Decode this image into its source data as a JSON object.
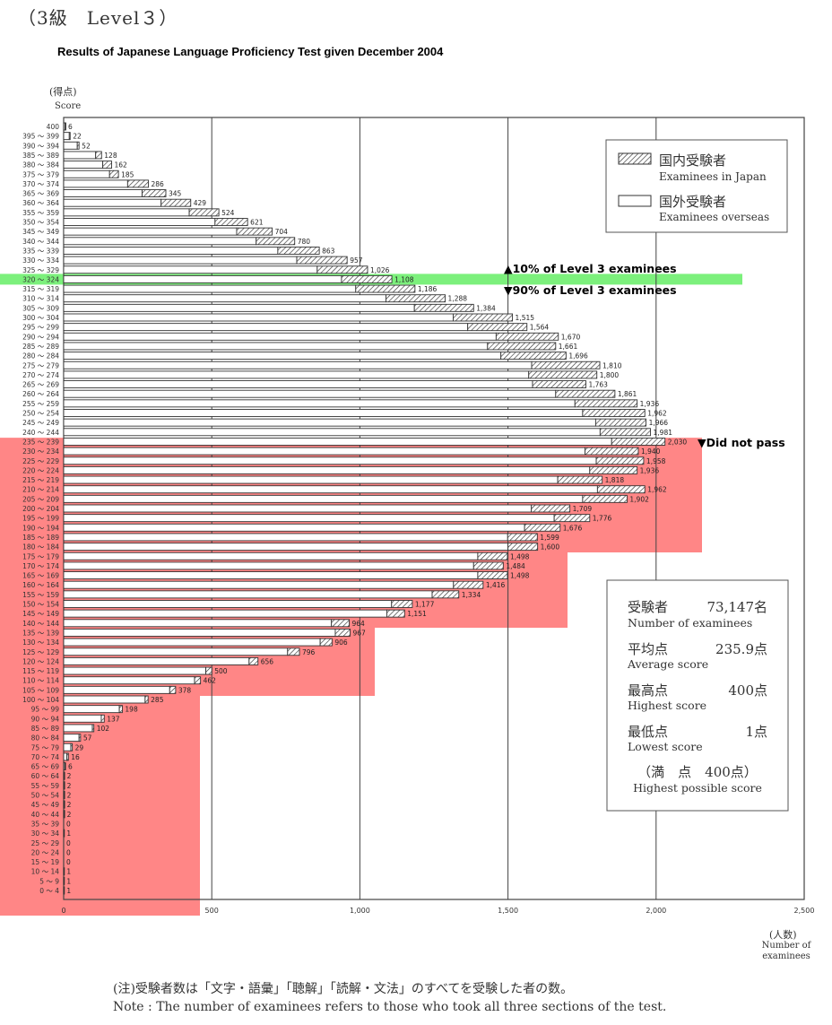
{
  "header": {
    "level": "（3級　Level３）",
    "title": "Results of Japanese Language Proficiency Test given December 2004"
  },
  "colors": {
    "pass_band": "#7cf07c",
    "fail_region": "#ff7f7f",
    "bar_stroke": "#333333",
    "grid": "#444444"
  },
  "legend": {
    "japan_jp": "国内受験者",
    "japan_en": "Examinees in Japan",
    "overseas_jp": "国外受験者",
    "overseas_en": "Examinees overseas",
    "japan_pattern": "hatched",
    "overseas_pattern": "white"
  },
  "annotations": {
    "top10": "▲10% of Level 3 examinees",
    "bottom90": "▼90% of Level 3 examinees",
    "did_not_pass": "▼Did not pass"
  },
  "stats": {
    "examinees_jp": "受験者",
    "examinees_value": "73,147名",
    "examinees_en": "Number of examinees",
    "average_jp": "平均点",
    "average_value": "235.9点",
    "average_en": "Average score",
    "highest_jp": "最高点",
    "highest_value": "400点",
    "highest_en": "Highest score",
    "lowest_jp": "最低点",
    "lowest_value": "1点",
    "lowest_en": "Lowest score",
    "possible_jp": "（満　点　400点）",
    "possible_en": "Highest possible score"
  },
  "notes": {
    "jp": "(注)受験者数は「文字・語彙」「聴解」「読解・文法」のすべてを受験した者の数。",
    "en": "Note : The number of examinees refers to those who took all three sections of the test."
  },
  "chart_data": {
    "type": "bar",
    "orientation": "horizontal",
    "ylabel_jp": "(得点)",
    "ylabel": "Score",
    "xlabel_jp": "(人数)",
    "xlabel": "Number of examinees",
    "xlim": [
      0,
      2500
    ],
    "xticks": [
      "0",
      "500",
      "1,000",
      "1,500",
      "2,000",
      "2,500"
    ],
    "xtick_values": [
      0,
      500,
      1000,
      1500,
      2000,
      2500
    ],
    "grid": true,
    "legend_position": "top-right",
    "categories": [
      "400",
      "395 ～ 399",
      "390 ～ 394",
      "385 ～ 389",
      "380 ～ 384",
      "375 ～ 379",
      "370 ～ 374",
      "365 ～ 369",
      "360 ～ 364",
      "355 ～ 359",
      "350 ～ 354",
      "345 ～ 349",
      "340 ～ 344",
      "335 ～ 339",
      "330 ～ 334",
      "325 ～ 329",
      "320 ～ 324",
      "315 ～ 319",
      "310 ～ 314",
      "305 ～ 309",
      "300 ～ 304",
      "295 ～ 299",
      "290 ～ 294",
      "285 ～ 289",
      "280 ～ 284",
      "275 ～ 279",
      "270 ～ 274",
      "265 ～ 269",
      "260 ～ 264",
      "255 ～ 259",
      "250 ～ 254",
      "245 ～ 249",
      "240 ～ 244",
      "235 ～ 239",
      "230 ～ 234",
      "225 ～ 229",
      "220 ～ 224",
      "215 ～ 219",
      "210 ～ 214",
      "205 ～ 209",
      "200 ～ 204",
      "195 ～ 199",
      "190 ～ 194",
      "185 ～ 189",
      "180 ～ 184",
      "175 ～ 179",
      "170 ～ 174",
      "165 ～ 169",
      "160 ～ 164",
      "155 ～ 159",
      "150 ～ 154",
      "145 ～ 149",
      "140 ～ 144",
      "135 ～ 139",
      "130 ～ 134",
      "125 ～ 129",
      "120 ～ 124",
      "115 ～ 119",
      "110 ～ 114",
      "105 ～ 109",
      "100 ～ 104",
      "95 ～ 99",
      "90 ～ 94",
      "85 ～ 89",
      "80 ～ 84",
      "75 ～ 79",
      "70 ～ 74",
      "65 ～ 69",
      "60 ～ 64",
      "55 ～ 59",
      "50 ～ 54",
      "45 ～ 49",
      "40 ～ 44",
      "35 ～ 39",
      "30 ～ 34",
      "25 ～ 29",
      "20 ～ 24",
      "15 ～ 19",
      "10 ～ 14",
      "5 ～ 9",
      "0 ～ 4"
    ],
    "totals": [
      6,
      22,
      52,
      128,
      162,
      185,
      286,
      345,
      429,
      524,
      621,
      704,
      780,
      863,
      957,
      1026,
      1108,
      1186,
      1288,
      1384,
      1515,
      1564,
      1670,
      1661,
      1696,
      1810,
      1800,
      1763,
      1861,
      1936,
      1962,
      1966,
      1981,
      2030,
      1940,
      1958,
      1936,
      1818,
      1962,
      1902,
      1709,
      1776,
      1676,
      1599,
      1600,
      1498,
      1484,
      1498,
      1416,
      1334,
      1177,
      1151,
      964,
      967,
      906,
      796,
      656,
      500,
      462,
      378,
      285,
      198,
      137,
      102,
      57,
      29,
      16,
      6,
      2,
      2,
      2,
      2,
      2,
      0,
      1,
      0,
      0,
      0,
      1,
      1,
      1
    ],
    "series": [
      {
        "name": "Examinees in Japan",
        "values": [
          1,
          3,
          6,
          20,
          30,
          30,
          70,
          80,
          100,
          100,
          110,
          120,
          130,
          140,
          170,
          170,
          170,
          200,
          200,
          200,
          200,
          200,
          210,
          230,
          220,
          230,
          230,
          180,
          200,
          210,
          210,
          170,
          170,
          180,
          180,
          160,
          160,
          150,
          160,
          150,
          130,
          120,
          120,
          100,
          100,
          100,
          100,
          100,
          100,
          90,
          70,
          60,
          60,
          50,
          40,
          40,
          30,
          20,
          20,
          20,
          10,
          10,
          10,
          5,
          5,
          5,
          5,
          2,
          1,
          1,
          1,
          1,
          1,
          0,
          0,
          0,
          0,
          0,
          0,
          0,
          0
        ]
      },
      {
        "name": "Examinees overseas",
        "values": [
          5,
          19,
          46,
          108,
          132,
          155,
          216,
          265,
          329,
          424,
          511,
          584,
          650,
          723,
          787,
          856,
          938,
          986,
          1088,
          1184,
          1315,
          1364,
          1460,
          1431,
          1476,
          1580,
          1570,
          1583,
          1661,
          1726,
          1752,
          1796,
          1811,
          1850,
          1760,
          1798,
          1776,
          1668,
          1802,
          1752,
          1579,
          1656,
          1556,
          1499,
          1500,
          1398,
          1384,
          1398,
          1316,
          1244,
          1107,
          1091,
          904,
          917,
          866,
          756,
          626,
          480,
          442,
          358,
          275,
          188,
          127,
          97,
          52,
          24,
          11,
          4,
          1,
          1,
          1,
          1,
          1,
          0,
          1,
          0,
          0,
          0,
          1,
          1,
          1
        ]
      }
    ],
    "highlighted_category": "320 ～ 324",
    "pass_threshold_category": "240 ～ 244"
  }
}
